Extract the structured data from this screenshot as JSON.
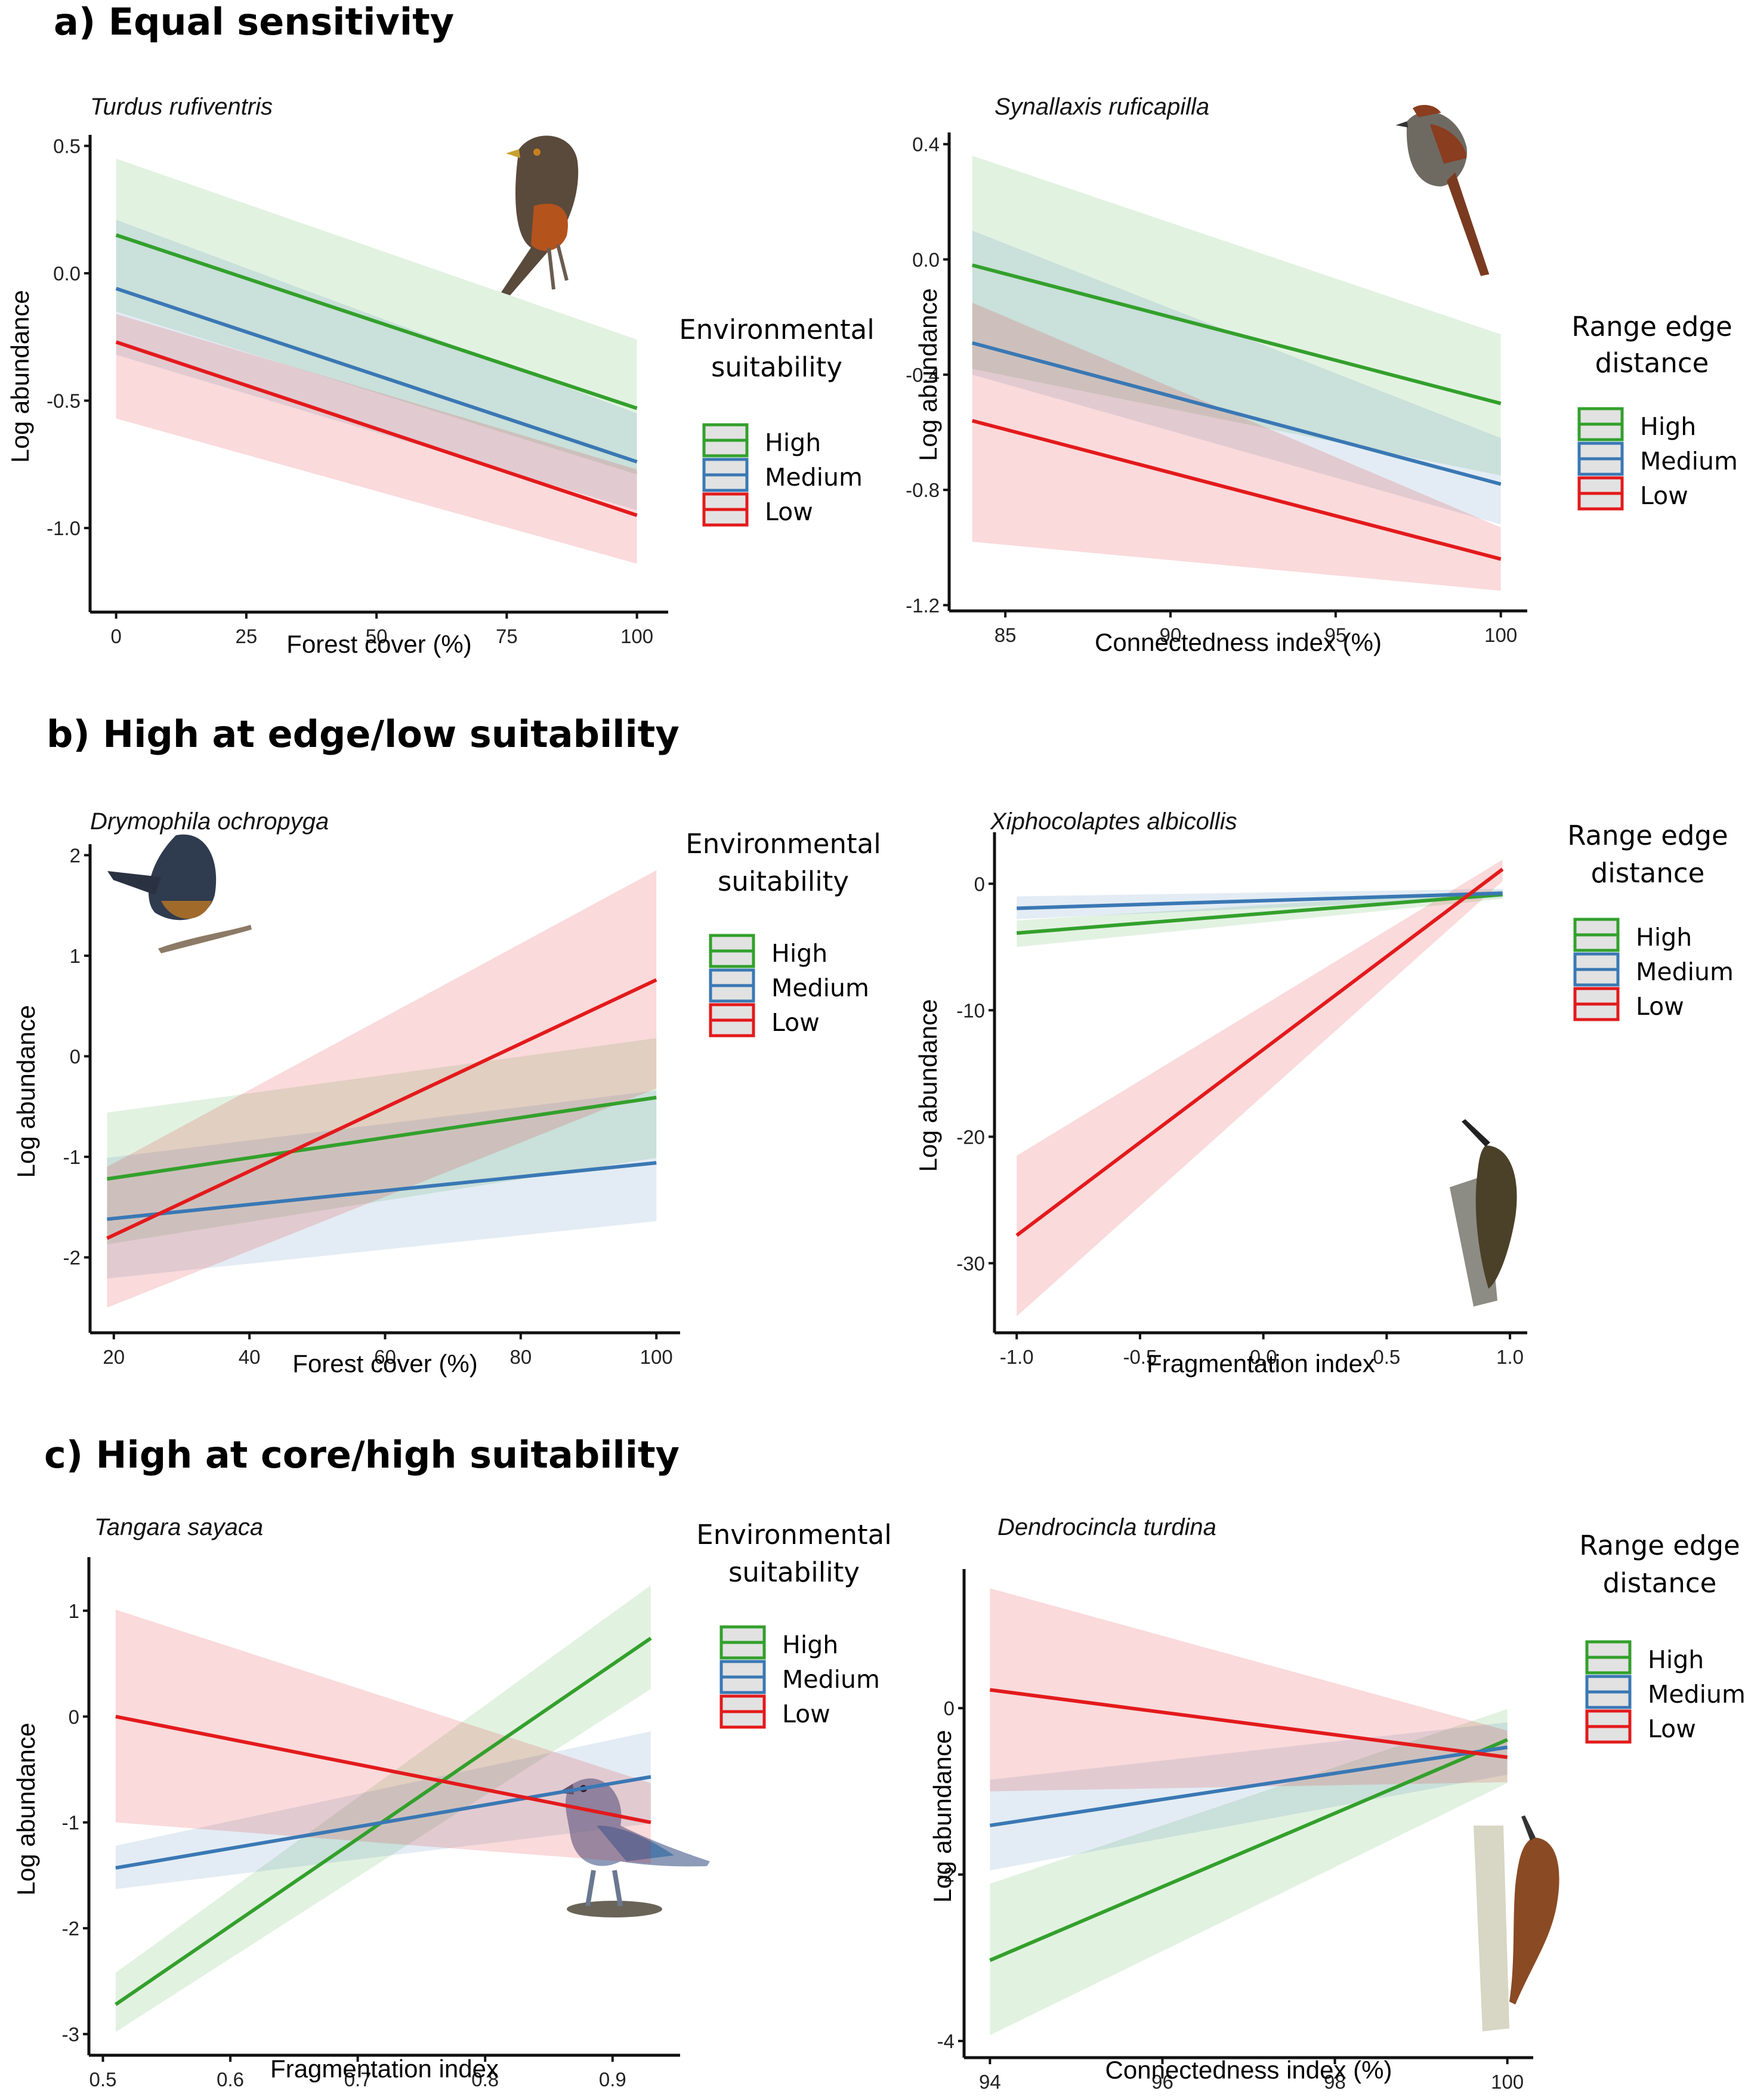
{
  "chart_data": [
    {
      "id": "a-left",
      "type": "line",
      "section_heading": "a) Equal sensitivity",
      "title": "Turdus rufiventris",
      "xlabel": "Forest cover (%)",
      "ylabel": "Log abundance",
      "xticks": [
        0,
        25,
        50,
        75,
        100
      ],
      "xtick_labels": [
        "0",
        "25",
        "50",
        "75",
        "100"
      ],
      "yticks": [
        0.5,
        0.0,
        -0.5,
        -1.0
      ],
      "ytick_labels": [
        "0.5",
        "0.0",
        "-0.5",
        "-1.0"
      ],
      "xlim": [
        -5,
        106
      ],
      "ylim": [
        -1.33,
        0.52
      ],
      "legend_title": [
        "Environmental",
        "suitability"
      ],
      "legend_position": "right",
      "bird": "thrush",
      "series": [
        {
          "name": "High",
          "color": "#33a02c",
          "x": [
            0,
            100
          ],
          "y": [
            0.15,
            -0.53
          ],
          "ci_lower": [
            -0.15,
            -0.79
          ],
          "ci_upper": [
            0.45,
            -0.26
          ]
        },
        {
          "name": "Medium",
          "color": "#3a78b4",
          "x": [
            0,
            100
          ],
          "y": [
            -0.06,
            -0.74
          ],
          "ci_lower": [
            -0.32,
            -0.93
          ],
          "ci_upper": [
            0.21,
            -0.55
          ]
        },
        {
          "name": "Low",
          "color": "#e31a1c",
          "x": [
            0,
            100
          ],
          "y": [
            -0.27,
            -0.95
          ],
          "ci_lower": [
            -0.57,
            -1.14
          ],
          "ci_upper": [
            -0.16,
            -0.77
          ]
        }
      ]
    },
    {
      "id": "a-right",
      "type": "line",
      "title": "Synallaxis ruficapilla",
      "xlabel": "Connectedness index (%)",
      "ylabel": "Log abundance",
      "xticks": [
        85,
        90,
        95,
        100
      ],
      "xtick_labels": [
        "85",
        "90",
        "95",
        "100"
      ],
      "yticks": [
        0.4,
        0.0,
        -0.4,
        -0.8,
        -1.2
      ],
      "ytick_labels": [
        "0.4",
        "0.0",
        "-0.4",
        "-0.8",
        "-1.2"
      ],
      "xlim": [
        83.3,
        100.8
      ],
      "ylim": [
        -1.22,
        0.42
      ],
      "legend_title": [
        "Range edge",
        "distance"
      ],
      "legend_position": "right",
      "bird": "spinetail",
      "series": [
        {
          "name": "High",
          "color": "#33a02c",
          "x": [
            84,
            100
          ],
          "y": [
            -0.02,
            -0.5
          ],
          "ci_lower": [
            -0.38,
            -0.75
          ],
          "ci_upper": [
            0.36,
            -0.26
          ]
        },
        {
          "name": "Medium",
          "color": "#3a78b4",
          "x": [
            84,
            100
          ],
          "y": [
            -0.29,
            -0.78
          ],
          "ci_lower": [
            -0.4,
            -0.92
          ],
          "ci_upper": [
            0.1,
            -0.62
          ]
        },
        {
          "name": "Low",
          "color": "#e31a1c",
          "x": [
            84,
            100
          ],
          "y": [
            -0.56,
            -1.04
          ],
          "ci_lower": [
            -0.98,
            -1.15
          ],
          "ci_upper": [
            -0.15,
            -0.93
          ]
        }
      ]
    },
    {
      "id": "b-left",
      "type": "line",
      "section_heading": "b) High at edge/low suitability",
      "title": "Drymophila ochropyga",
      "xlabel": "Forest cover (%)",
      "ylabel": "Log abundance",
      "xticks": [
        20,
        40,
        60,
        80,
        100
      ],
      "xtick_labels": [
        "20",
        "40",
        "60",
        "80",
        "100"
      ],
      "yticks": [
        2,
        1,
        0,
        -1,
        -2
      ],
      "ytick_labels": [
        "2",
        "1",
        "0",
        "-1",
        "-2"
      ],
      "xlim": [
        16.5,
        103.5
      ],
      "ylim": [
        -2.75,
        2.05
      ],
      "legend_title": [
        "Environmental",
        "suitability"
      ],
      "legend_position": "top-right",
      "bird": "antwren",
      "series": [
        {
          "name": "High",
          "color": "#33a02c",
          "x": [
            19,
            100
          ],
          "y": [
            -1.22,
            -0.41
          ],
          "ci_lower": [
            -1.87,
            -1.01
          ],
          "ci_upper": [
            -0.56,
            0.18
          ]
        },
        {
          "name": "Medium",
          "color": "#3a78b4",
          "x": [
            19,
            100
          ],
          "y": [
            -1.62,
            -1.06
          ],
          "ci_lower": [
            -2.21,
            -1.64
          ],
          "ci_upper": [
            -1.01,
            -0.34
          ]
        },
        {
          "name": "Low",
          "color": "#e31a1c",
          "x": [
            19,
            100
          ],
          "y": [
            -1.81,
            0.76
          ],
          "ci_lower": [
            -2.5,
            -0.32
          ],
          "ci_upper": [
            -1.1,
            1.85
          ]
        }
      ]
    },
    {
      "id": "b-right",
      "type": "line",
      "title": "Xiphocolaptes albicollis",
      "xlabel": "Fragmentation index",
      "ylabel": "Log abundance",
      "xticks": [
        -1.0,
        -0.5,
        0.0,
        0.5,
        1.0
      ],
      "xtick_labels": [
        "-1.0",
        "-0.5",
        "0.0",
        "0.5",
        "1.0"
      ],
      "yticks": [
        0,
        -10,
        -20,
        -30
      ],
      "ytick_labels": [
        "0",
        "-10",
        "-20",
        "-30"
      ],
      "xlim": [
        -1.09,
        1.07
      ],
      "ylim": [
        -35.5,
        3.6
      ],
      "legend_title": [
        "Range edge",
        "distance"
      ],
      "legend_position": "top-right",
      "bird": "woodcreeper",
      "series": [
        {
          "name": "High",
          "color": "#33a02c",
          "x": [
            -1.0,
            0.97
          ],
          "y": [
            -3.9,
            -0.85
          ],
          "ci_lower": [
            -5.0,
            -1.2
          ],
          "ci_upper": [
            -2.9,
            -0.5
          ]
        },
        {
          "name": "Medium",
          "color": "#3a78b4",
          "x": [
            -1.0,
            0.97
          ],
          "y": [
            -1.94,
            -0.75
          ],
          "ci_lower": [
            -2.8,
            -1.1
          ],
          "ci_upper": [
            -1.0,
            -0.4
          ]
        },
        {
          "name": "Low",
          "color": "#e31a1c",
          "x": [
            -1.0,
            0.97
          ],
          "y": [
            -27.8,
            1.15
          ],
          "ci_lower": [
            -34.2,
            0.2
          ],
          "ci_upper": [
            -21.5,
            1.9
          ]
        }
      ]
    },
    {
      "id": "c-left",
      "type": "line",
      "section_heading": "c) High at core/high suitability",
      "title": "Tangara sayaca",
      "xlabel": "Fragmentation index",
      "ylabel": "Log abundance",
      "xticks": [
        0.5,
        0.6,
        0.7,
        0.8,
        0.9
      ],
      "xtick_labels": [
        "0.5",
        "0.6",
        "0.7",
        "0.8",
        "0.9"
      ],
      "yticks": [
        1,
        0,
        -1,
        -2,
        -3
      ],
      "ytick_labels": [
        "1",
        "0",
        "-1",
        "-2",
        "-3"
      ],
      "xlim": [
        0.489,
        0.953
      ],
      "ylim": [
        -3.2,
        1.45
      ],
      "legend_title": [
        "Environmental",
        "suitability"
      ],
      "legend_position": "top-right",
      "bird": "tanager",
      "series": [
        {
          "name": "High",
          "color": "#33a02c",
          "x": [
            0.51,
            0.93
          ],
          "y": [
            -2.72,
            0.74
          ],
          "ci_lower": [
            -2.98,
            0.26
          ],
          "ci_upper": [
            -2.42,
            1.24
          ]
        },
        {
          "name": "Medium",
          "color": "#3a78b4",
          "x": [
            0.51,
            0.93
          ],
          "y": [
            -1.43,
            -0.57
          ],
          "ci_lower": [
            -1.63,
            -1.01
          ],
          "ci_upper": [
            -1.22,
            -0.14
          ]
        },
        {
          "name": "Low",
          "color": "#e31a1c",
          "x": [
            0.51,
            0.93
          ],
          "y": [
            0.0,
            -1.0
          ],
          "ci_lower": [
            -1.0,
            -1.39
          ],
          "ci_upper": [
            1.01,
            -0.63
          ]
        }
      ]
    },
    {
      "id": "c-right",
      "type": "line",
      "title": "Dendrocincla turdina",
      "xlabel": "Connectedness index (%)",
      "ylabel": "Log abundance",
      "xticks": [
        94,
        96,
        98,
        100
      ],
      "xtick_labels": [
        "94",
        "96",
        "98",
        "100"
      ],
      "yticks": [
        0,
        -2,
        -4
      ],
      "ytick_labels": [
        "0",
        "-2",
        "-4"
      ],
      "xlim": [
        93.7,
        100.3
      ],
      "ylim": [
        -4.2,
        1.6
      ],
      "legend_title": [
        "Range edge",
        "distance"
      ],
      "legend_position": "right",
      "bird": "woodcreeper-brown",
      "series": [
        {
          "name": "High",
          "color": "#33a02c",
          "x": [
            94,
            100
          ],
          "y": [
            -3.03,
            -0.38
          ],
          "ci_lower": [
            -3.93,
            -0.9
          ],
          "ci_upper": [
            -2.11,
            -0.01
          ]
        },
        {
          "name": "Medium",
          "color": "#3a78b4",
          "x": [
            94,
            100
          ],
          "y": [
            -1.41,
            -0.47
          ],
          "ci_lower": [
            -1.95,
            -0.8
          ],
          "ci_upper": [
            -0.86,
            -0.17
          ]
        },
        {
          "name": "Low",
          "color": "#e31a1c",
          "x": [
            94,
            100
          ],
          "y": [
            0.22,
            -0.59
          ],
          "ci_lower": [
            -1.0,
            -0.89
          ],
          "ci_upper": [
            1.44,
            -0.27
          ]
        }
      ]
    }
  ],
  "legend_labels": [
    "High",
    "Medium",
    "Low"
  ],
  "colors": {
    "high": "#33a02c",
    "medium": "#3a78b4",
    "low": "#e31a1c",
    "legend_fill": "#e2e2e2"
  }
}
